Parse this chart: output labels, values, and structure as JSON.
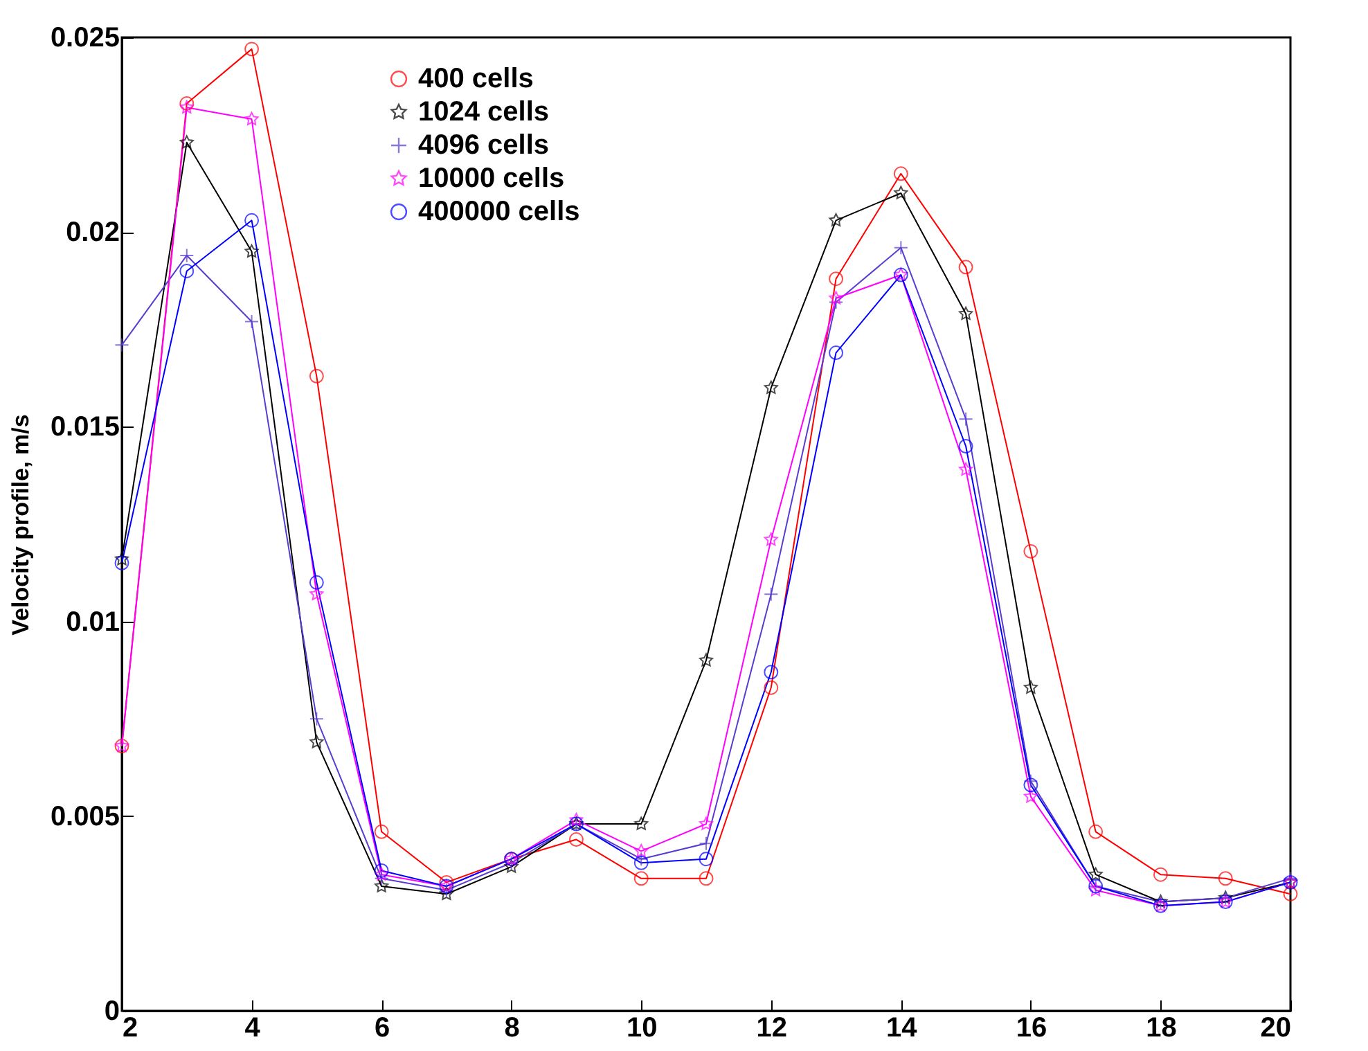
{
  "chart_data": {
    "type": "line",
    "ylabel": "Velocity profile, m/s",
    "x": [
      2,
      3,
      4,
      5,
      6,
      7,
      8,
      9,
      10,
      11,
      12,
      13,
      14,
      15,
      16,
      17,
      18,
      19,
      20
    ],
    "xlim": [
      2,
      20
    ],
    "xticks": [
      2,
      4,
      6,
      8,
      10,
      12,
      14,
      16,
      18,
      20
    ],
    "ylim": [
      0,
      0.025
    ],
    "yticks": [
      0,
      0.005,
      0.01,
      0.015,
      0.02,
      0.025
    ],
    "grid": false,
    "legend": "top left",
    "line_style": "solid",
    "series": [
      {
        "name": "400 cells",
        "color": "#ff0000",
        "marker": "circle",
        "values": [
          0.0068,
          0.0233,
          0.0247,
          0.0163,
          0.0046,
          0.0033,
          0.0039,
          0.0044,
          0.0034,
          0.0034,
          0.0083,
          0.0188,
          0.0215,
          0.0191,
          0.0118,
          0.0046,
          0.0035,
          0.0034,
          0.003
        ]
      },
      {
        "name": "1024 cells",
        "color": "#000000",
        "marker": "star",
        "values": [
          0.0116,
          0.0223,
          0.0195,
          0.0069,
          0.0032,
          0.003,
          0.0037,
          0.0048,
          0.0048,
          0.009,
          0.016,
          0.0203,
          0.021,
          0.0179,
          0.0083,
          0.0035,
          0.0028,
          0.0029,
          0.0033
        ]
      },
      {
        "name": "4096 cells",
        "color": "#5a3cd0",
        "marker": "cross",
        "values": [
          0.0171,
          0.0194,
          0.0177,
          0.0075,
          0.0034,
          0.0031,
          0.0038,
          0.0048,
          0.0039,
          0.0043,
          0.0107,
          0.0182,
          0.0196,
          0.0152,
          0.0059,
          0.0032,
          0.0028,
          0.0029,
          0.0034
        ]
      },
      {
        "name": "10000 cells",
        "color": "#ff00ff",
        "marker": "star",
        "values": [
          0.0068,
          0.0232,
          0.0229,
          0.0107,
          0.0035,
          0.0032,
          0.0039,
          0.0049,
          0.0041,
          0.0048,
          0.0121,
          0.0183,
          0.0189,
          0.0139,
          0.0055,
          0.0031,
          0.0027,
          0.0028,
          0.0033
        ]
      },
      {
        "name": "400000 cells",
        "color": "#0000ff",
        "marker": "circle",
        "values": [
          0.0115,
          0.019,
          0.0203,
          0.011,
          0.0036,
          0.0032,
          0.0039,
          0.0048,
          0.0038,
          0.0039,
          0.0087,
          0.0169,
          0.0189,
          0.0145,
          0.0058,
          0.0032,
          0.0027,
          0.0028,
          0.0033
        ]
      }
    ]
  }
}
